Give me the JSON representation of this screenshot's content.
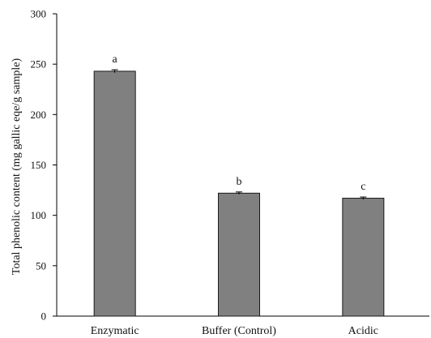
{
  "chart_data": {
    "type": "bar",
    "title": "",
    "xlabel": "",
    "ylabel": "Total phenolic content  (mg gallic eqe/g sample)",
    "categories": [
      "Enzymatic",
      "Buffer (Control)",
      "Acidic"
    ],
    "values": [
      243,
      122,
      117
    ],
    "error": [
      1.5,
      1.2,
      1.2
    ],
    "significance_letters": [
      "a",
      "b",
      "c"
    ],
    "ylim": [
      0,
      300
    ],
    "yticks": [
      0,
      50,
      100,
      150,
      200,
      250,
      300
    ],
    "grid": false,
    "legend": "none",
    "colors": {
      "bar_fill": "#808080",
      "bar_stroke": "#1a1a1a",
      "axis": "#000000"
    }
  }
}
